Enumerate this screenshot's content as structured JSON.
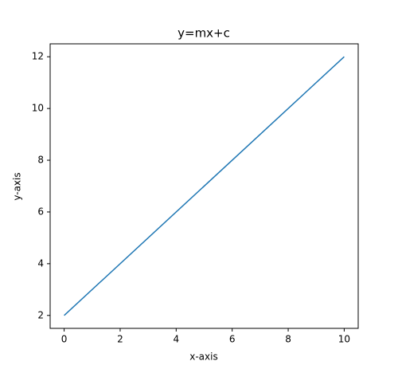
{
  "chart_data": {
    "type": "line",
    "title": "y=mx+c",
    "x_label": "x-axis",
    "y_label": "y-axis",
    "x": [
      0,
      10
    ],
    "series": [
      {
        "color": "#1f77b4",
        "values": [
          2,
          12
        ]
      }
    ],
    "xlim": [
      -0.5,
      10.5
    ],
    "xticks": [
      0,
      2,
      4,
      6,
      8,
      10
    ],
    "ylim": [
      1.5,
      12.5
    ],
    "yticks": [
      2,
      4,
      6,
      8,
      10,
      12
    ]
  }
}
